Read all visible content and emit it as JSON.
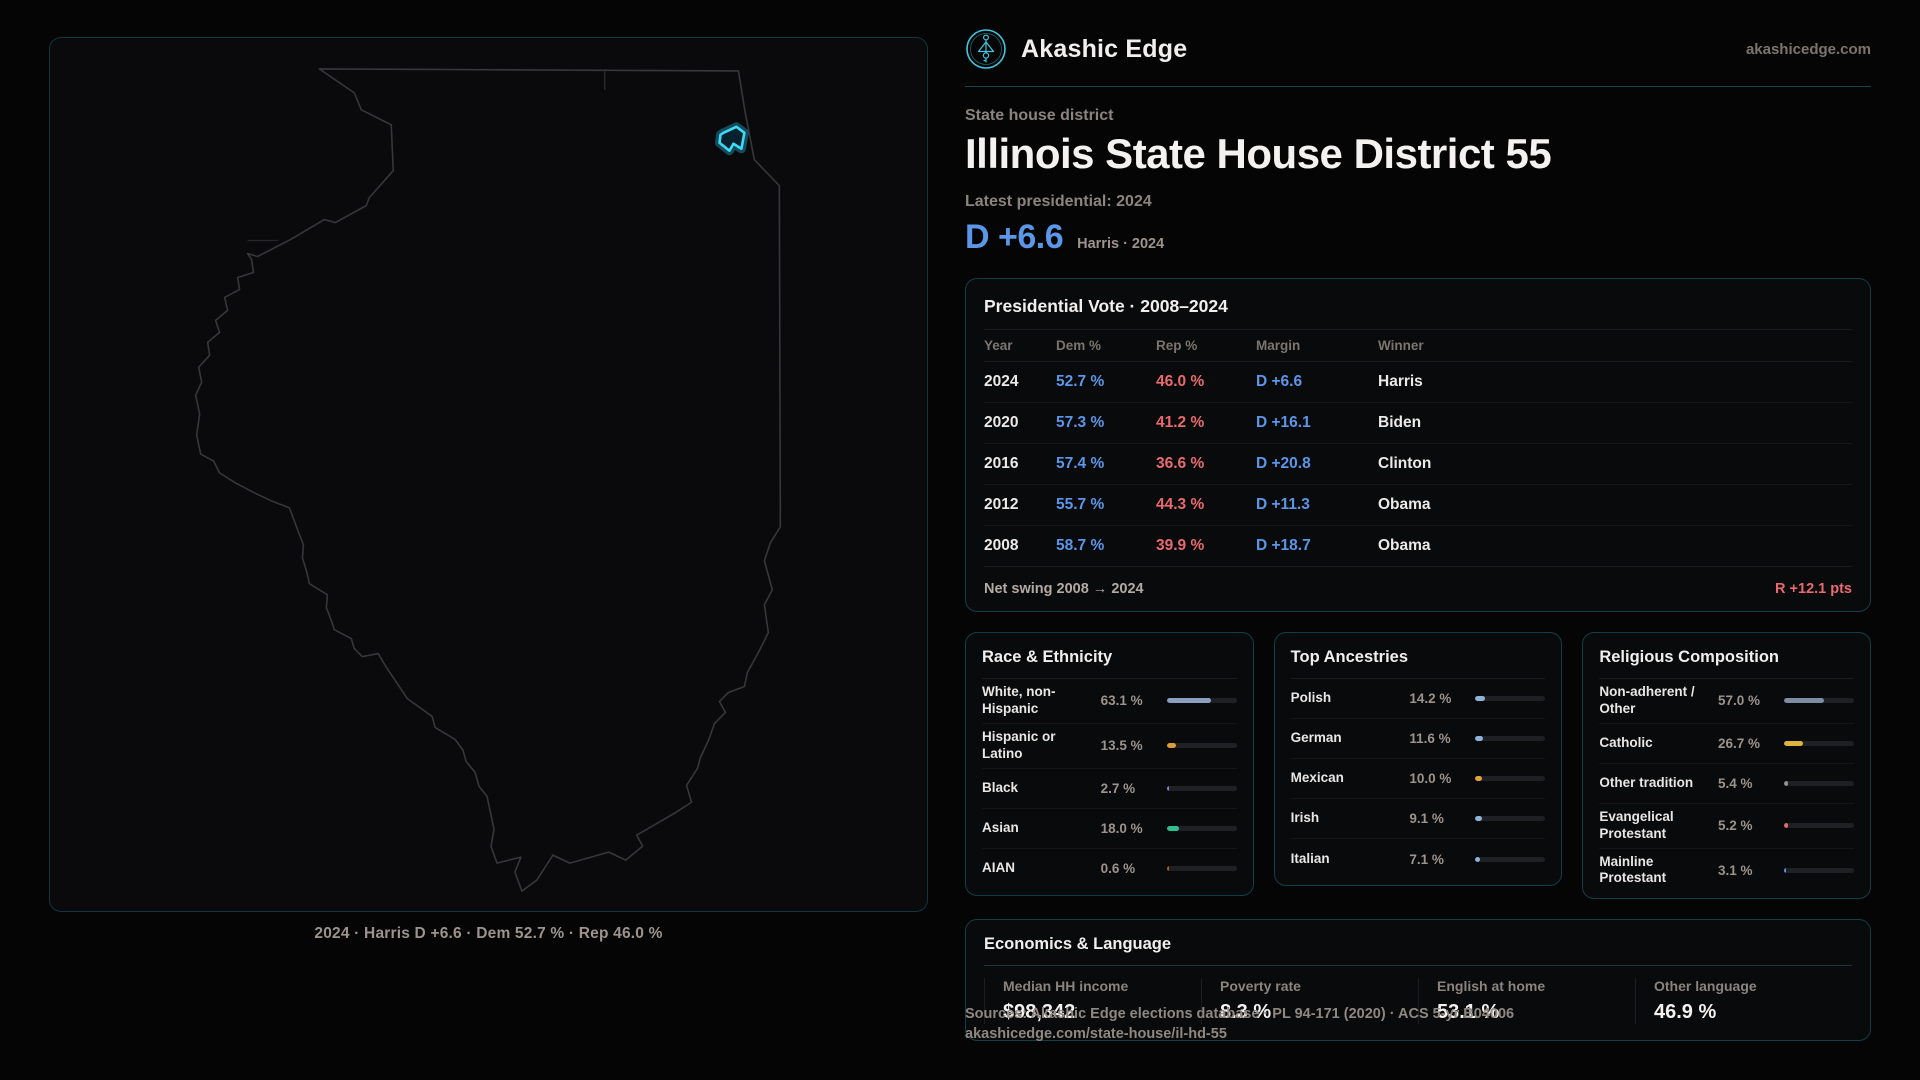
{
  "brand": {
    "name": "Akashic Edge",
    "domain": "akashicedge.com"
  },
  "header": {
    "eyebrow": "State house district",
    "title": "Illinois State House District 55",
    "latest_label": "Latest presidential: 2024",
    "margin_value": "D +6.6",
    "margin_caption": "Harris · 2024",
    "accent_blue": "#5b96e8",
    "accent_red": "#e96a6e",
    "accent_cyan": "#3ec6dd"
  },
  "map": {
    "caption": "2024 · Harris D +6.6 · Dem 52.7 % · Rep 46.0 %"
  },
  "presidential_table": {
    "title": "Presidential Vote · 2008–2024",
    "columns": [
      "Year",
      "Dem %",
      "Rep %",
      "Margin",
      "Winner"
    ],
    "rows": [
      {
        "year": "2024",
        "dem": "52.7 %",
        "rep": "46.0 %",
        "margin": "D +6.6",
        "winner": "Harris"
      },
      {
        "year": "2020",
        "dem": "57.3 %",
        "rep": "41.2 %",
        "margin": "D +16.1",
        "winner": "Biden"
      },
      {
        "year": "2016",
        "dem": "57.4 %",
        "rep": "36.6 %",
        "margin": "D +20.8",
        "winner": "Clinton"
      },
      {
        "year": "2012",
        "dem": "55.7 %",
        "rep": "44.3 %",
        "margin": "D +11.3",
        "winner": "Obama"
      },
      {
        "year": "2008",
        "dem": "58.7 %",
        "rep": "39.9 %",
        "margin": "D +18.7",
        "winner": "Obama"
      }
    ],
    "footer_label": "Net swing 2008 → 2024",
    "footer_value": "R +12.1 pts"
  },
  "race_ethnicity": {
    "title": "Race & Ethnicity",
    "rows": [
      {
        "label": "White, non-Hispanic",
        "value": "63.1 %",
        "pct": 63.1,
        "color": "#8d9fc0"
      },
      {
        "label": "Hispanic or Latino",
        "value": "13.5 %",
        "pct": 13.5,
        "color": "#dd9b3b"
      },
      {
        "label": "Black",
        "value": "2.7 %",
        "pct": 2.7,
        "color": "#8b7fd8"
      },
      {
        "label": "Asian",
        "value": "18.0 %",
        "pct": 18.0,
        "color": "#2fbf8f"
      },
      {
        "label": "AIAN",
        "value": "0.6 %",
        "pct": 0.6,
        "color": "#b05a2a"
      }
    ]
  },
  "ancestries": {
    "title": "Top Ancestries",
    "rows": [
      {
        "label": "Polish",
        "value": "14.2 %",
        "pct": 14.2,
        "color": "#8fb2d8"
      },
      {
        "label": "German",
        "value": "11.6 %",
        "pct": 11.6,
        "color": "#8fb2d8"
      },
      {
        "label": "Mexican",
        "value": "10.0 %",
        "pct": 10.0,
        "color": "#e0a33c"
      },
      {
        "label": "Irish",
        "value": "9.1 %",
        "pct": 9.1,
        "color": "#8fb2d8"
      },
      {
        "label": "Italian",
        "value": "7.1 %",
        "pct": 7.1,
        "color": "#8fb2d8"
      }
    ]
  },
  "religion": {
    "title": "Religious Composition",
    "rows": [
      {
        "label": "Non-adherent / Other",
        "value": "57.0 %",
        "pct": 57.0,
        "color": "#7d8ba3"
      },
      {
        "label": "Catholic",
        "value": "26.7 %",
        "pct": 26.7,
        "color": "#ddb33c"
      },
      {
        "label": "Other tradition",
        "value": "5.4 %",
        "pct": 5.4,
        "color": "#909090"
      },
      {
        "label": "Evangelical Protestant",
        "value": "5.2 %",
        "pct": 5.2,
        "color": "#dd6b6b"
      },
      {
        "label": "Mainline Protestant",
        "value": "3.1 %",
        "pct": 3.1,
        "color": "#5b96e8"
      }
    ]
  },
  "economics": {
    "title": "Economics & Language",
    "stats": [
      {
        "label": "Median HH income",
        "value": "$98,342"
      },
      {
        "label": "Poverty rate",
        "value": "8.3 %"
      },
      {
        "label": "English at home",
        "value": "53.1 %"
      },
      {
        "label": "Other language",
        "value": "46.9 %"
      }
    ]
  },
  "source": {
    "line1": "Sources: Akashic Edge elections database · PL 94-171 (2020) · ACS 5-yr B04006",
    "line2": "akashicedge.com/state-house/il-hd-55"
  }
}
